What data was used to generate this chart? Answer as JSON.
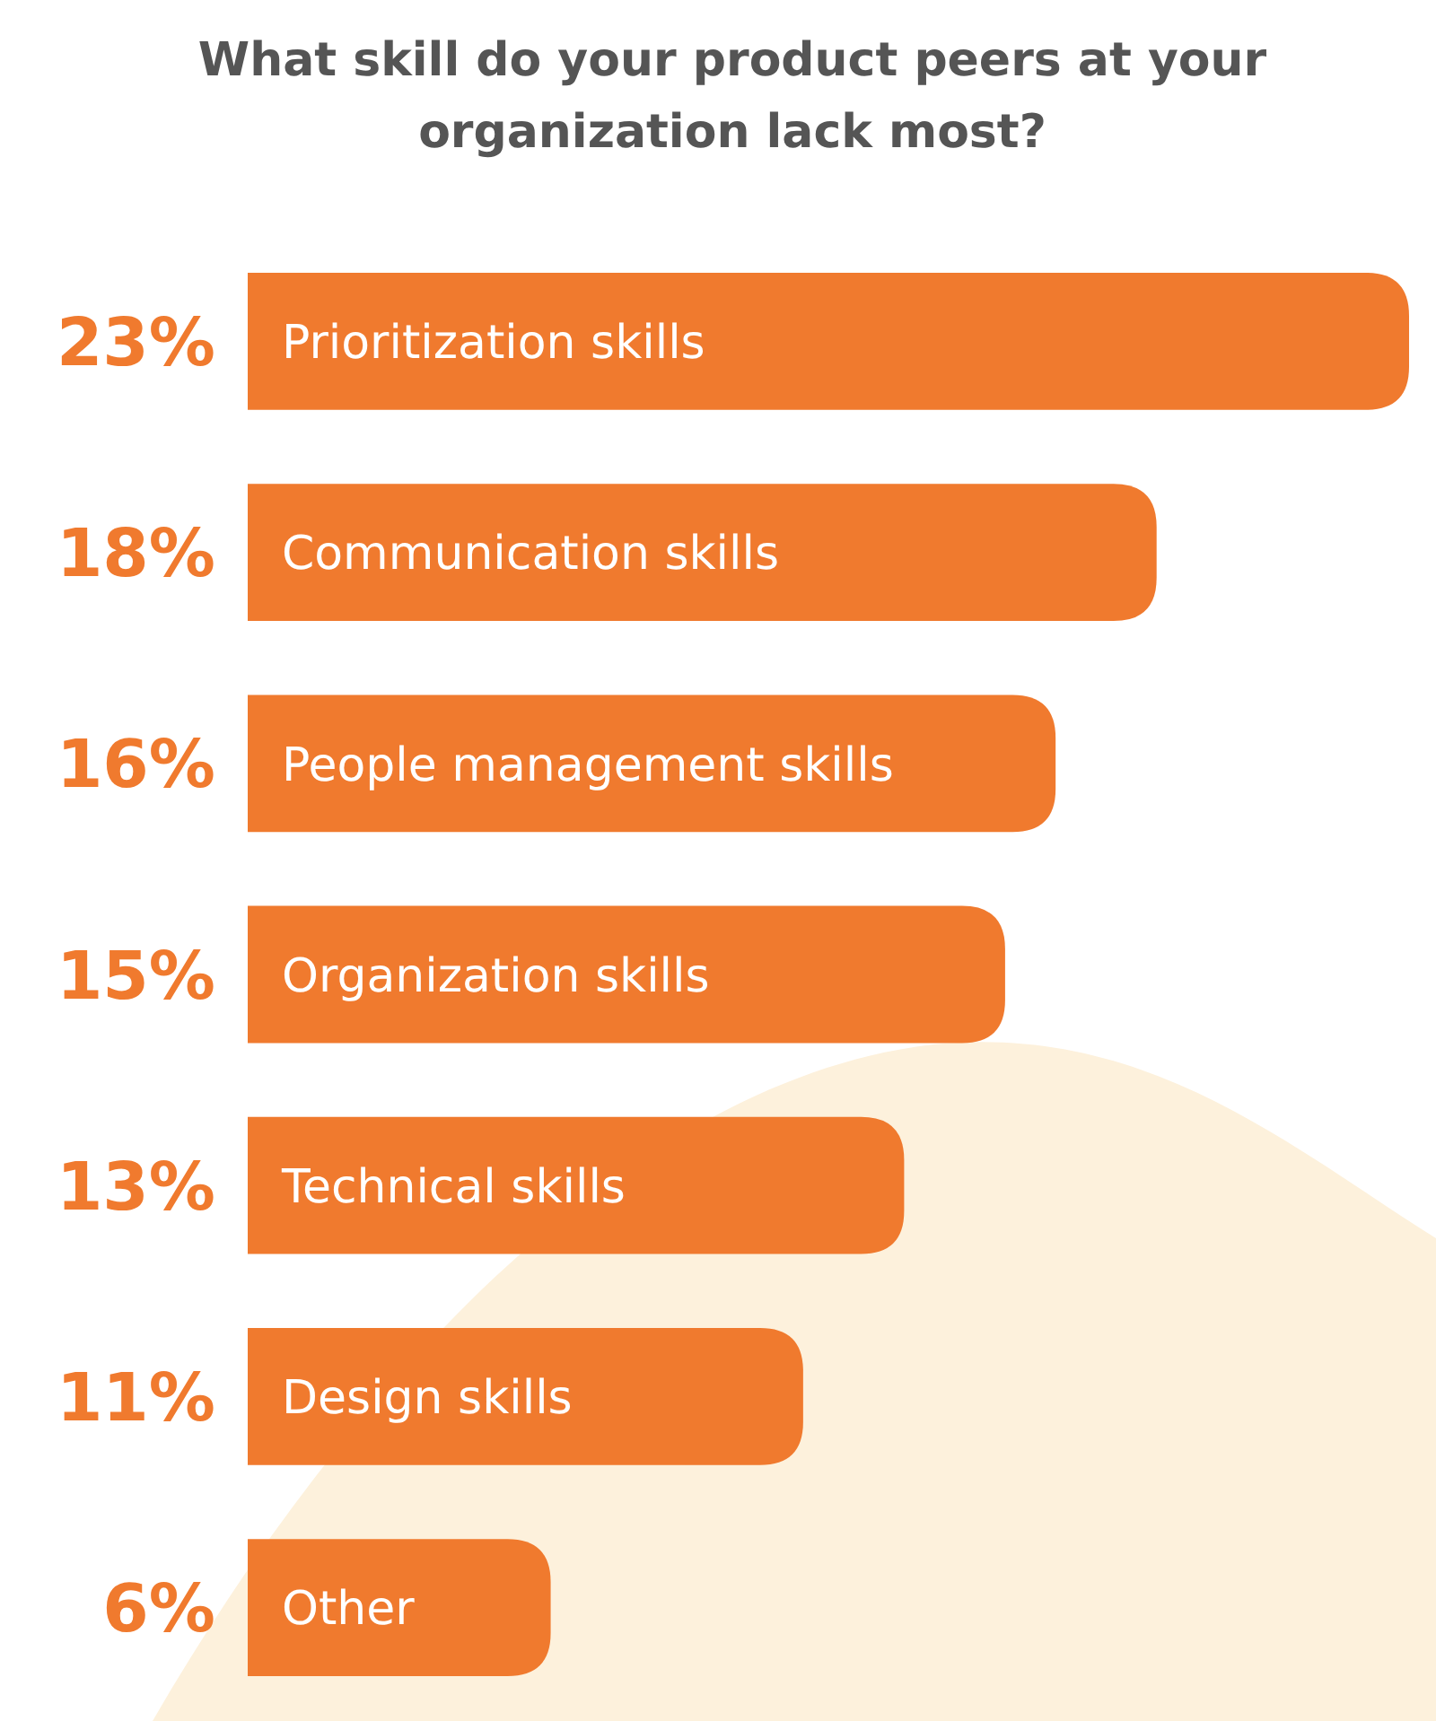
{
  "chart_data": {
    "type": "bar",
    "orientation": "horizontal",
    "title": "What skill do your product peers at your organization lack most?",
    "categories": [
      "Prioritization skills",
      "Communication skills",
      "People management skills",
      "Organization skills",
      "Technical skills",
      "Design skills",
      "Other"
    ],
    "values": [
      23,
      18,
      16,
      15,
      13,
      11,
      6
    ],
    "value_labels": [
      "23%",
      "18%",
      "16%",
      "15%",
      "13%",
      "11%",
      "6%"
    ],
    "color": "#f07a2e"
  }
}
